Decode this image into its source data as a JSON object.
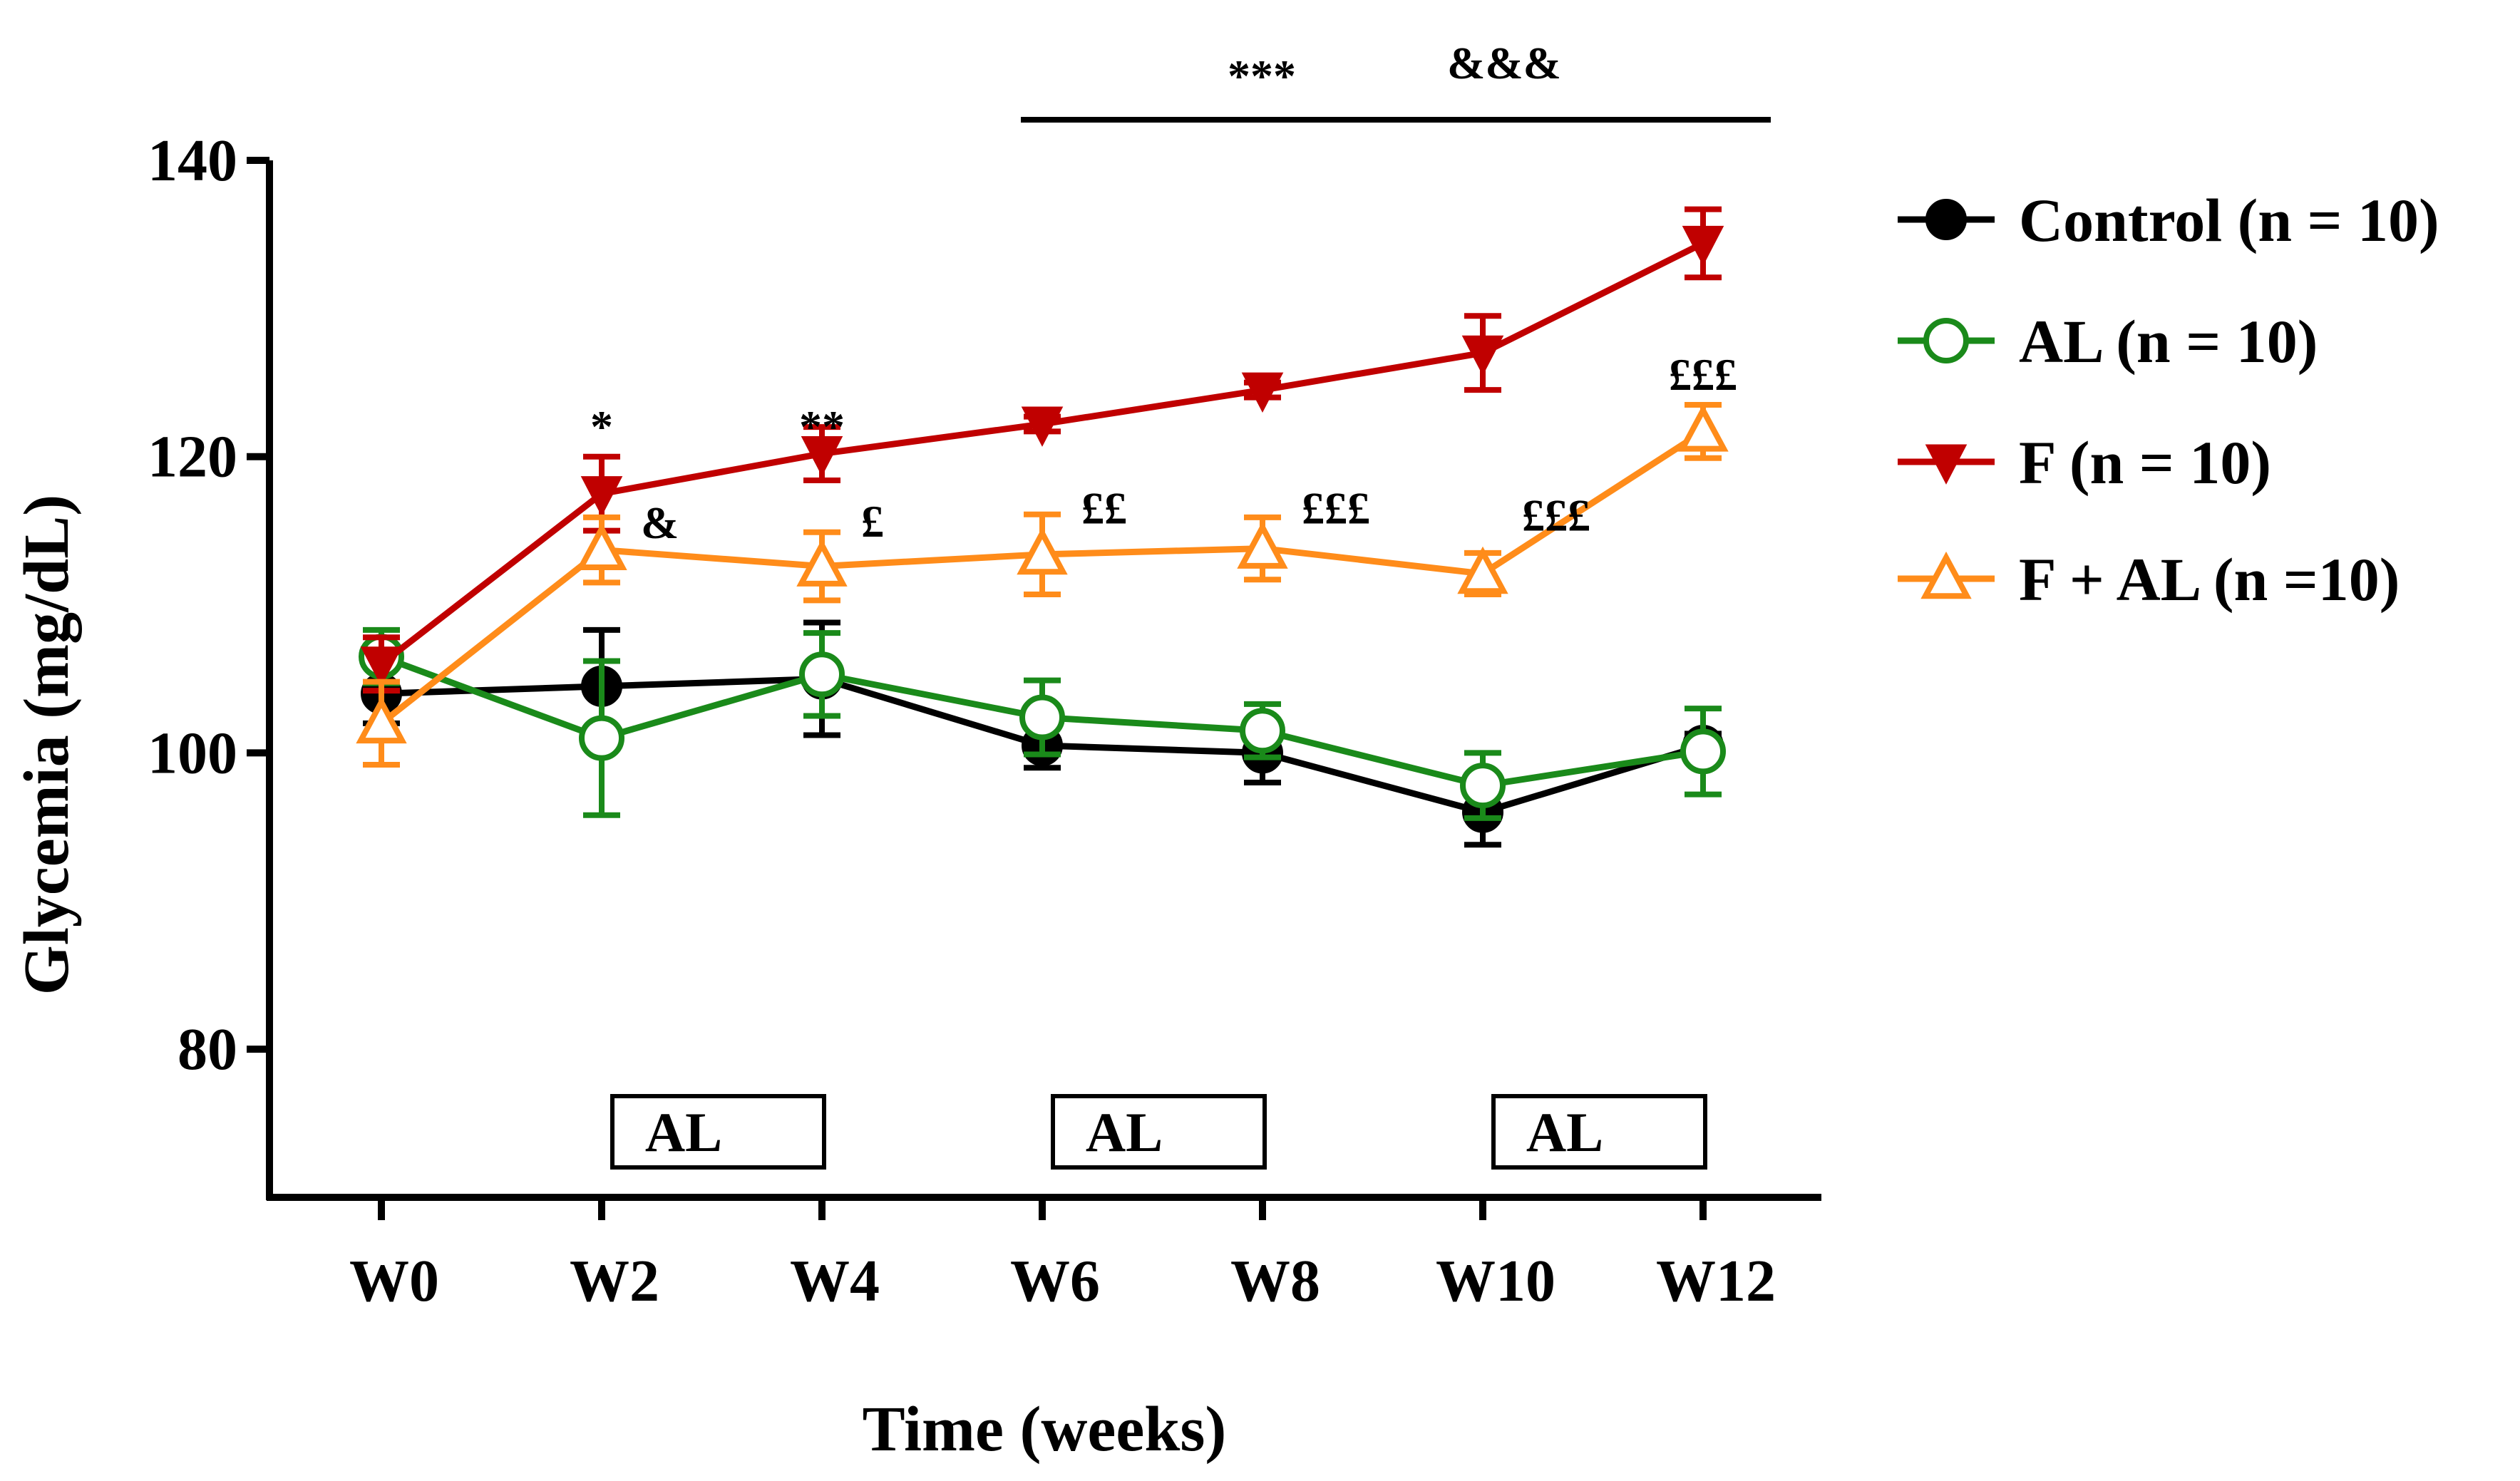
{
  "chart_data": {
    "type": "line",
    "xlabel": "Time (weeks)",
    "ylabel": "Glycemia (mg/dL)",
    "categories": [
      "W0",
      "W2",
      "W4",
      "W6",
      "W8",
      "W10",
      "W12"
    ],
    "ylim": [
      70,
      140
    ],
    "yticks": [
      80,
      100,
      120,
      140
    ],
    "grid": false,
    "legend_position": "right",
    "series": [
      {
        "name": "Control (n = 10)",
        "color": "#000000",
        "marker": "filled-circle",
        "values": [
          104,
          104.5,
          105,
          100.5,
          100,
          96,
          100.5
        ],
        "errors": [
          2,
          3.8,
          3.8,
          1.5,
          2,
          2.2,
          0.8
        ]
      },
      {
        "name": "AL (n = 10)",
        "color": "#1a8a1a",
        "marker": "open-circle",
        "values": [
          106.5,
          101,
          105.3,
          102.4,
          101.5,
          97.8,
          100.1
        ],
        "errors": [
          1.8,
          5.2,
          2.8,
          2.5,
          1.8,
          2.2,
          2.9
        ]
      },
      {
        "name": "F (n = 10)",
        "color": "#c00000",
        "marker": "filled-triangle-down",
        "values": [
          106,
          117.5,
          120.2,
          122.2,
          124.5,
          127,
          134.4
        ],
        "errors": [
          1.8,
          2.5,
          1.8,
          0.5,
          0.5,
          2.5,
          2.3
        ]
      },
      {
        "name": "F + AL (n =10)",
        "color": "#ff8c1a",
        "marker": "open-triangle-up",
        "values": [
          102,
          113.7,
          112.6,
          113.4,
          113.8,
          112.1,
          121.7
        ],
        "errors": [
          2.8,
          2.2,
          2.3,
          2.7,
          2.1,
          1.4,
          1.8
        ]
      }
    ],
    "point_annotations": [
      {
        "text": "*",
        "index": 1,
        "y": 121,
        "series": "F"
      },
      {
        "text": "**",
        "index": 2,
        "y": 121,
        "series": "F"
      },
      {
        "text": "&",
        "index": 1,
        "y": 114.5,
        "series": "F + AL"
      },
      {
        "text": "£",
        "index": 2,
        "y": 114.6,
        "series": "F + AL"
      },
      {
        "text": "££",
        "index": 3,
        "y": 115.5,
        "series": "F + AL"
      },
      {
        "text": "£££",
        "index": 4,
        "y": 115.5,
        "series": "F + AL"
      },
      {
        "text": "£££",
        "index": 5,
        "y": 115,
        "series": "F + AL"
      },
      {
        "text": "£££",
        "index": 6,
        "y": 124.5,
        "series": "F + AL"
      }
    ],
    "significance_bar": {
      "from_index": 3,
      "to_index": 6,
      "labels": [
        "***",
        "&&&"
      ]
    },
    "treatment_boxes": [
      {
        "label": "AL",
        "from_index": 1,
        "to_index": 2
      },
      {
        "label": "AL",
        "from_index": 3,
        "to_index": 4
      },
      {
        "label": "AL",
        "from_index": 5,
        "to_index": 6
      }
    ]
  }
}
